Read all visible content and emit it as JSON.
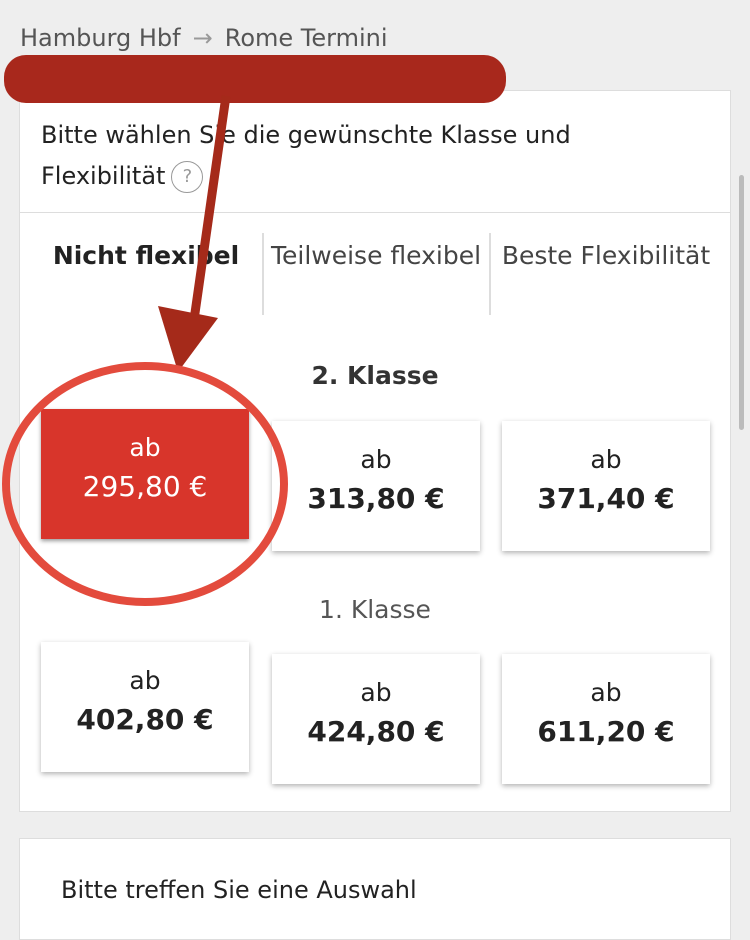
{
  "route": {
    "from": "Hamburg Hbf",
    "to": "Rome Termini"
  },
  "card": {
    "prompt": "Bitte wählen Sie die gewünschte Klasse und Flexibilität",
    "help": "?"
  },
  "tabs": [
    "Nicht flexibel",
    "Teilweise flexibel",
    "Beste Flexibilität"
  ],
  "classes": [
    {
      "name": "2. Klasse",
      "offers": [
        {
          "prefix": "ab",
          "price": "295,80 €"
        },
        {
          "prefix": "ab",
          "price": "313,80 €"
        },
        {
          "prefix": "ab",
          "price": "371,40 €"
        }
      ]
    },
    {
      "name": "1. Klasse",
      "offers": [
        {
          "prefix": "ab",
          "price": "402,80 €"
        },
        {
          "prefix": "ab",
          "price": "424,80 €"
        },
        {
          "prefix": "ab",
          "price": "611,20 €"
        }
      ]
    }
  ],
  "footer": {
    "text": "Bitte treffen Sie eine Auswahl"
  }
}
